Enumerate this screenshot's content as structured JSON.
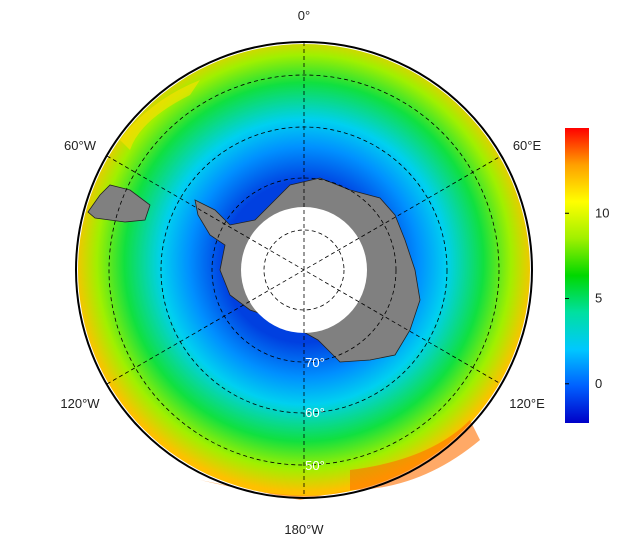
{
  "map": {
    "longitude_labels": [
      "0°",
      "60°E",
      "120°E",
      "180°W",
      "120°W",
      "60°W"
    ],
    "latitude_labels": [
      "70°",
      "60°",
      "50°"
    ]
  },
  "colorbar": {
    "range": [
      -2.3,
      15
    ],
    "ticks": [
      0,
      5,
      10
    ],
    "colors": [
      "#0000c8",
      "#0060ff",
      "#00c8ff",
      "#00e0a0",
      "#00d800",
      "#a0f000",
      "#ffff00",
      "#ffa000",
      "#ff0000"
    ]
  }
}
